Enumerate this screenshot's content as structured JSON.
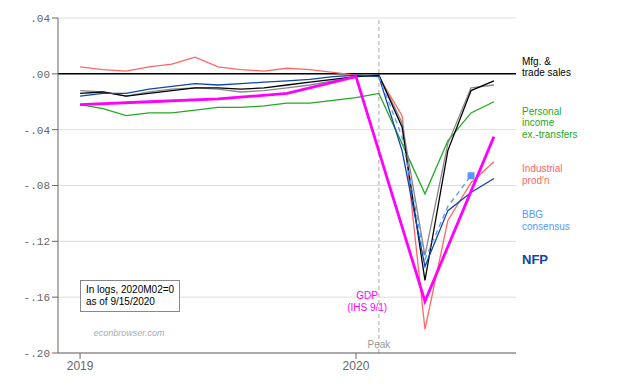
{
  "chart_data": {
    "type": "line",
    "xlim": [
      2018.92,
      2020.58
    ],
    "xticks": [
      2019,
      2020
    ],
    "ylim": [
      -0.2,
      0.04
    ],
    "yticks": [
      {
        "value": -0.2,
        "label": "-.20"
      },
      {
        "value": -0.16,
        "label": "-.16"
      },
      {
        "value": -0.12,
        "label": "-.12"
      },
      {
        "value": -0.08,
        "label": "-.08"
      },
      {
        "value": -0.04,
        "label": "-.04"
      },
      {
        "value": 0.0,
        "label": ".00"
      },
      {
        "value": 0.04,
        "label": ".04"
      }
    ],
    "grid": true,
    "hlines": [
      0
    ],
    "vlines": [
      {
        "x": 2020.083,
        "label": "Peak"
      }
    ],
    "annotations": [
      "In logs, 2020M02=0\nas of 9/15/2020",
      "econbrowser.com"
    ],
    "series": [
      {
        "name": "Industrial\nprod'n",
        "color": "#ff6666",
        "x": [
          2019.0,
          2019.083,
          2019.167,
          2019.25,
          2019.333,
          2019.417,
          2019.5,
          2019.583,
          2019.667,
          2019.75,
          2019.833,
          2019.917,
          2020.0,
          2020.083,
          2020.167,
          2020.25,
          2020.333,
          2020.417,
          2020.5
        ],
        "values": [
          0.005,
          0.003,
          0.002,
          0.005,
          0.007,
          0.012,
          0.005,
          0.003,
          0.002,
          0.004,
          0.003,
          0.001,
          -0.001,
          -0.002,
          -0.03,
          -0.183,
          -0.105,
          -0.078,
          -0.063
        ]
      },
      {
        "name": "Personal\nincome\nex.-transfers",
        "color": "#22aa22",
        "x": [
          2019.0,
          2019.083,
          2019.167,
          2019.25,
          2019.333,
          2019.417,
          2019.5,
          2019.583,
          2019.667,
          2019.75,
          2019.833,
          2019.917,
          2020.0,
          2020.083,
          2020.167,
          2020.25,
          2020.333,
          2020.417,
          2020.5
        ],
        "values": [
          -0.022,
          -0.025,
          -0.03,
          -0.028,
          -0.028,
          -0.026,
          -0.024,
          -0.024,
          -0.023,
          -0.021,
          -0.021,
          -0.019,
          -0.017,
          -0.014,
          -0.05,
          -0.086,
          -0.048,
          -0.028,
          -0.02
        ]
      },
      {
        "color": "#888888",
        "x": [
          2019.0,
          2019.083,
          2019.167,
          2019.25,
          2019.333,
          2019.417,
          2019.5,
          2019.583,
          2019.667,
          2019.75,
          2019.833,
          2019.917,
          2020.0,
          2020.083,
          2020.167,
          2020.25,
          2020.333,
          2020.417,
          2020.5
        ],
        "values": [
          -0.012,
          -0.013,
          -0.016,
          -0.013,
          -0.011,
          -0.01,
          -0.011,
          -0.013,
          -0.012,
          -0.01,
          -0.008,
          -0.005,
          -0.002,
          -0.001,
          -0.035,
          -0.13,
          -0.05,
          -0.01,
          -0.008
        ]
      },
      {
        "name": "Mfg. &\ntrade sales",
        "color": "#000000",
        "x": [
          2019.0,
          2019.083,
          2019.167,
          2019.25,
          2019.333,
          2019.417,
          2019.5,
          2019.583,
          2019.667,
          2019.75,
          2019.833,
          2019.917,
          2020.0,
          2020.083,
          2020.167,
          2020.25,
          2020.333,
          2020.417,
          2020.5
        ],
        "values": [
          -0.014,
          -0.013,
          -0.016,
          -0.014,
          -0.012,
          -0.01,
          -0.01,
          -0.011,
          -0.01,
          -0.008,
          -0.006,
          -0.004,
          -0.002,
          -0.001,
          -0.038,
          -0.148,
          -0.055,
          -0.012,
          -0.005
        ]
      },
      {
        "name": "NFP",
        "color": "#1144aa",
        "x": [
          2019.0,
          2019.083,
          2019.167,
          2019.25,
          2019.333,
          2019.417,
          2019.5,
          2019.583,
          2019.667,
          2019.75,
          2019.833,
          2019.917,
          2020.0,
          2020.083,
          2020.167,
          2020.25,
          2020.333,
          2020.417,
          2020.5
        ],
        "values": [
          -0.016,
          -0.014,
          -0.014,
          -0.011,
          -0.009,
          -0.007,
          -0.008,
          -0.007,
          -0.006,
          -0.005,
          -0.004,
          -0.002,
          -0.001,
          -0.002,
          -0.055,
          -0.138,
          -0.098,
          -0.085,
          -0.075
        ]
      },
      {
        "name": "GDP\n(IHS 9/1)",
        "color": "#ff00ff",
        "x": [
          2019.0,
          2019.25,
          2019.5,
          2019.75,
          2020.0,
          2020.25,
          2020.5
        ],
        "values": [
          -0.022,
          -0.02,
          -0.018,
          -0.014,
          -0.002,
          -0.163,
          -0.045
        ]
      },
      {
        "name": "BBG\nconsensus",
        "color": "#5599ff",
        "line_style": "dashed",
        "marker": "square",
        "x": [
          2020.083,
          2020.167,
          2020.25,
          2020.333,
          2020.417
        ],
        "values": [
          -0.002,
          -0.045,
          -0.133,
          -0.095,
          -0.073
        ]
      }
    ]
  }
}
